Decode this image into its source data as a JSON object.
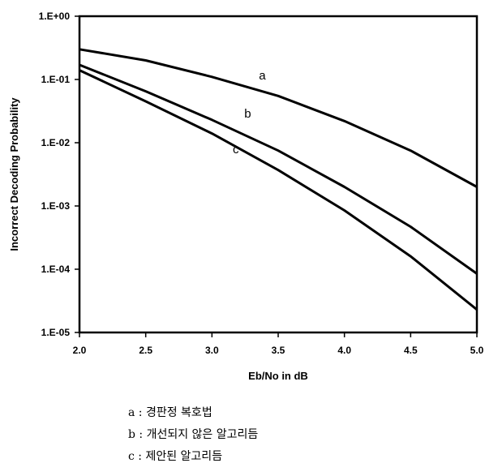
{
  "chart_data": {
    "type": "line",
    "xlabel": "Eb/No in dB",
    "ylabel": "Incorrect Decoding Probability",
    "xlim": [
      2.0,
      5.0
    ],
    "ylim": [
      1e-05,
      1
    ],
    "y_scale": "log",
    "x_ticks": [
      "2.0",
      "2.5",
      "3.0",
      "3.5",
      "4.0",
      "4.5",
      "5.0"
    ],
    "y_ticks": [
      "1.E+00",
      "1.E-01",
      "1.E-02",
      "1.E-03",
      "1.E-04",
      "1.E-05"
    ],
    "grid": false,
    "legend": "below",
    "line_color": "#000000",
    "x": [
      2.0,
      2.5,
      3.0,
      3.5,
      4.0,
      4.5,
      5.0
    ],
    "series": [
      {
        "name": "a",
        "values": [
          0.3,
          0.2,
          0.11,
          0.055,
          0.022,
          0.0075,
          0.002
        ]
      },
      {
        "name": "b",
        "values": [
          0.17,
          0.065,
          0.023,
          0.0075,
          0.002,
          0.00047,
          8.5e-05
        ]
      },
      {
        "name": "c",
        "values": [
          0.14,
          0.045,
          0.014,
          0.0037,
          0.00085,
          0.00016,
          2.3e-05
        ]
      }
    ]
  },
  "legend_items": [
    "a : 경판정 복호법",
    "b : 개선되지 않은 알고리듬",
    "c : 제안된 알고리듬"
  ]
}
